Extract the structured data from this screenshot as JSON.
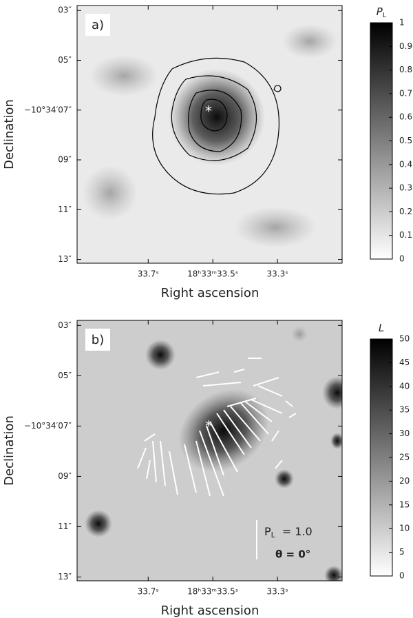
{
  "chart_data": [
    {
      "type": "image",
      "panel_label": "a)",
      "x_label": "Right ascension",
      "y_label": "Declination",
      "xlim": [
        33.92,
        33.1
      ],
      "ylim": [
        2.8,
        13.15
      ],
      "xticks": [
        {
          "value": 33.7,
          "label": "33.7ˢ"
        },
        {
          "value": 33.5,
          "label": "18ʰ33ᵐ33.5ˢ"
        },
        {
          "value": 33.3,
          "label": "33.3ˢ"
        }
      ],
      "yticks": [
        {
          "value": 3,
          "label": "03″"
        },
        {
          "value": 5,
          "label": "05″"
        },
        {
          "value": 7,
          "label": "−10°34′07″"
        },
        {
          "value": 9,
          "label": "09″"
        },
        {
          "value": 11,
          "label": "11″"
        },
        {
          "value": 13,
          "label": "13″"
        }
      ],
      "colorbar_label": "P",
      "colorbar_label_sub": "L",
      "colorbar_lim": [
        0,
        1
      ],
      "colorbar_ticks": [
        0,
        0.1,
        0.2,
        0.3,
        0.4,
        0.5,
        0.6,
        0.7,
        0.8,
        0.9,
        1
      ]
    },
    {
      "type": "image",
      "panel_label": "b)",
      "x_label": "Right ascension",
      "y_label": "Declination",
      "xlim": [
        33.92,
        33.1
      ],
      "ylim": [
        2.8,
        13.15
      ],
      "xticks": [
        {
          "value": 33.7,
          "label": "33.7ˢ"
        },
        {
          "value": 33.5,
          "label": "18ʰ33ᵐ33.5ˢ"
        },
        {
          "value": 33.3,
          "label": "33.3ˢ"
        }
      ],
      "yticks": [
        {
          "value": 3,
          "label": "03″"
        },
        {
          "value": 5,
          "label": "05″"
        },
        {
          "value": 7,
          "label": "−10°34′07″"
        },
        {
          "value": 9,
          "label": "09″"
        },
        {
          "value": 11,
          "label": "11″"
        },
        {
          "value": 13,
          "label": "13″"
        }
      ],
      "colorbar_label": "L",
      "colorbar_lim": [
        0,
        50
      ],
      "colorbar_ticks": [
        0,
        5,
        10,
        15,
        20,
        25,
        30,
        35,
        40,
        45,
        50
      ],
      "legend_label": "P",
      "legend_label_sub": "L",
      "legend_value": "= 1.0",
      "legend_angle": "θ = 0°"
    }
  ]
}
